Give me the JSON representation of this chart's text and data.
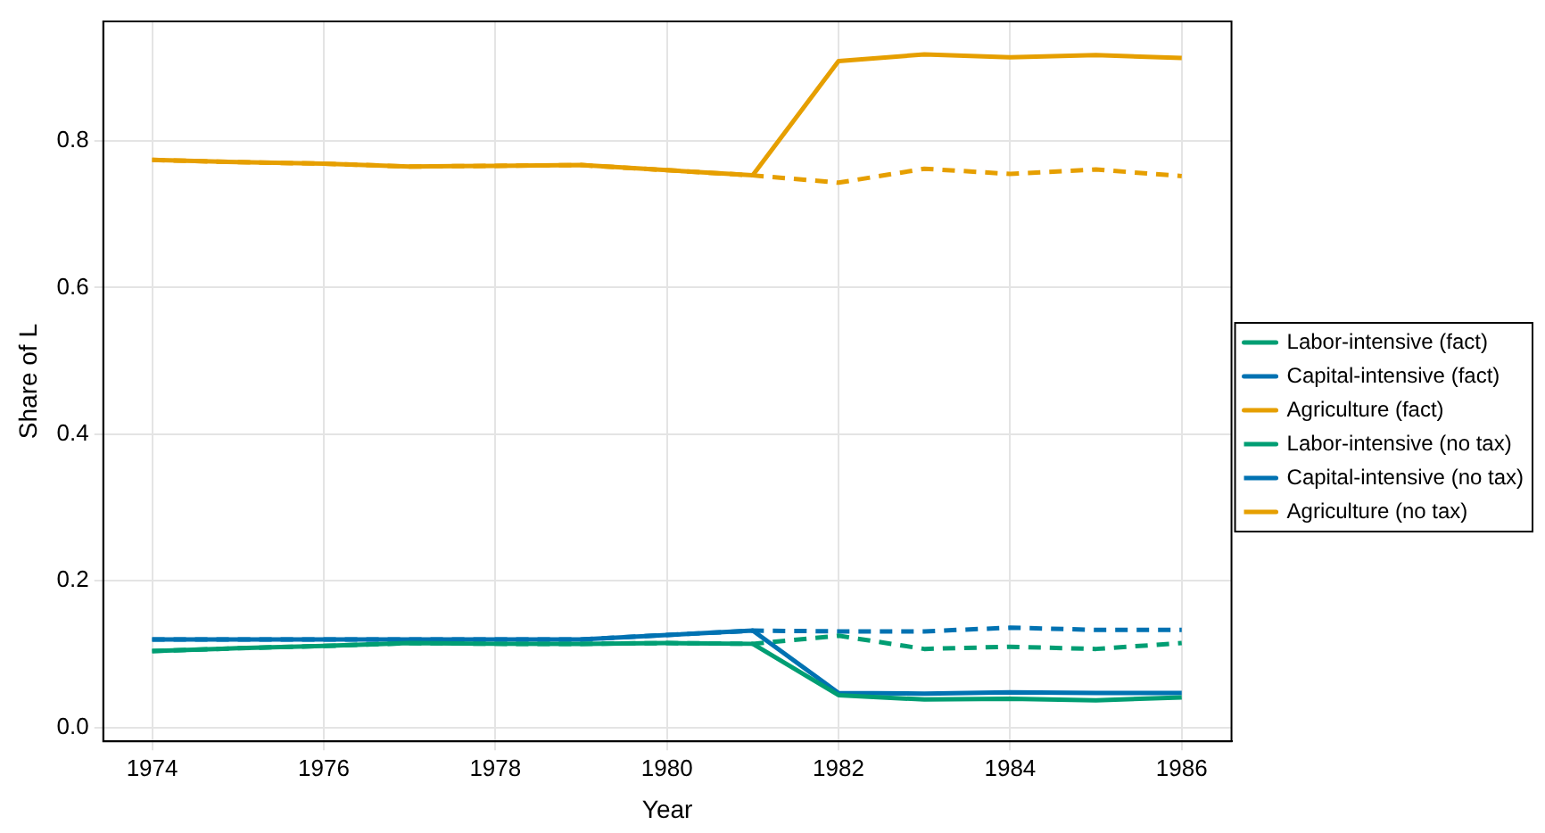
{
  "chart_data": {
    "type": "line",
    "xlabel": "Year",
    "ylabel": "Share of L",
    "x": [
      1974,
      1975,
      1976,
      1977,
      1978,
      1979,
      1980,
      1981,
      1982,
      1983,
      1984,
      1985,
      1986
    ],
    "series": [
      {
        "name": "Labor-intensive (fact)",
        "color": "#009e73",
        "line_style": "solid",
        "values": [
          0.104,
          0.108,
          0.111,
          0.115,
          0.114,
          0.114,
          0.115,
          0.114,
          0.044,
          0.038,
          0.039,
          0.037,
          0.041
        ]
      },
      {
        "name": "Capital-intensive (fact)",
        "color": "#0072b2",
        "line_style": "solid",
        "values": [
          0.12,
          0.12,
          0.12,
          0.12,
          0.12,
          0.12,
          0.126,
          0.132,
          0.047,
          0.046,
          0.048,
          0.047,
          0.047
        ]
      },
      {
        "name": "Agriculture (fact)",
        "color": "#e69f00",
        "line_style": "solid",
        "values": [
          0.774,
          0.771,
          0.769,
          0.765,
          0.766,
          0.767,
          0.76,
          0.753,
          0.909,
          0.918,
          0.914,
          0.917,
          0.913
        ]
      },
      {
        "name": "Labor-intensive (no tax)",
        "color": "#009e73",
        "line_style": "dashed",
        "values": [
          0.104,
          0.108,
          0.111,
          0.115,
          0.114,
          0.114,
          0.115,
          0.114,
          0.125,
          0.107,
          0.11,
          0.107,
          0.115
        ]
      },
      {
        "name": "Capital-intensive (no tax)",
        "color": "#0072b2",
        "line_style": "dashed",
        "values": [
          0.12,
          0.12,
          0.12,
          0.12,
          0.12,
          0.12,
          0.126,
          0.132,
          0.131,
          0.131,
          0.136,
          0.133,
          0.133
        ]
      },
      {
        "name": "Agriculture (no tax)",
        "color": "#e69f00",
        "line_style": "dashed",
        "values": [
          0.774,
          0.771,
          0.769,
          0.765,
          0.766,
          0.767,
          0.76,
          0.753,
          0.743,
          0.762,
          0.755,
          0.761,
          0.752
        ]
      }
    ],
    "xlim": [
      1973.43,
      1986.58
    ],
    "xticks": [
      1974,
      1976,
      1978,
      1980,
      1982,
      1984,
      1986
    ],
    "ylim": [
      -0.019,
      0.963
    ],
    "yticks": [
      {
        "value": 0,
        "label": "0.0"
      },
      0.2,
      0.4,
      0.6,
      0.8
    ],
    "grid": true,
    "legend": "right",
    "marker": "none"
  }
}
